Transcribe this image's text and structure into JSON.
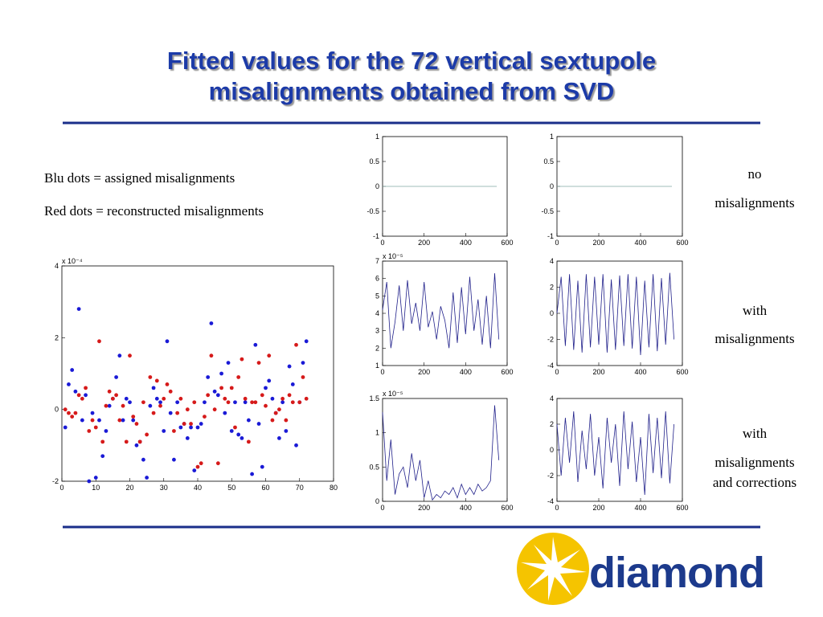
{
  "header": {
    "title": [
      "Fitted values for the 72 vertical sextupole",
      "misalignments obtained from SVD"
    ]
  },
  "legend_text": [
    "Blu dots = assigned misalignments",
    "Red dots = reconstructed misalignments"
  ],
  "side_labels": [
    [
      "no",
      "misalignments"
    ],
    [
      "with",
      "misalignments"
    ],
    [
      "with",
      "misalignments",
      "and corrections"
    ]
  ],
  "logo": {
    "text": "diamond"
  },
  "chart_data": [
    {
      "type": "scatter",
      "y_exponent": "x 10⁻⁴",
      "xlim": [
        0,
        80
      ],
      "xticks": [
        0,
        10,
        20,
        30,
        40,
        50,
        60,
        70,
        80
      ],
      "ylim": [
        -2,
        4
      ],
      "yticks": [
        -2,
        0,
        2,
        4
      ],
      "x": [
        1,
        2,
        3,
        4,
        5,
        6,
        7,
        8,
        9,
        10,
        11,
        12,
        13,
        14,
        15,
        16,
        17,
        18,
        19,
        20,
        21,
        22,
        23,
        24,
        25,
        26,
        27,
        28,
        29,
        30,
        31,
        32,
        33,
        34,
        35,
        36,
        37,
        38,
        39,
        40,
        41,
        42,
        43,
        44,
        45,
        46,
        47,
        48,
        49,
        50,
        51,
        52,
        53,
        54,
        55,
        56,
        57,
        58,
        59,
        60,
        61,
        62,
        63,
        64,
        65,
        66,
        67,
        68,
        69,
        70,
        71,
        72
      ],
      "series": [
        {
          "color": "#1a1ad6",
          "values": [
            -0.5,
            0.7,
            1.1,
            0.5,
            2.8,
            -0.3,
            0.4,
            -2.0,
            -0.1,
            -1.9,
            -0.3,
            -1.3,
            -0.6,
            0.1,
            0.3,
            0.9,
            1.5,
            -0.3,
            0.3,
            0.2,
            -0.3,
            -1.0,
            -0.9,
            -1.4,
            -1.9,
            0.1,
            0.6,
            0.3,
            0.2,
            -0.6,
            1.9,
            -0.1,
            -1.4,
            0.2,
            -0.5,
            -0.4,
            -0.8,
            -0.5,
            -1.7,
            -0.5,
            -0.4,
            0.2,
            0.9,
            2.4,
            0.5,
            0.4,
            1.0,
            -0.1,
            1.3,
            -0.6,
            0.2,
            -0.7,
            -0.8,
            0.2,
            -0.3,
            -1.8,
            1.8,
            -0.4,
            -1.6,
            0.6,
            0.8,
            0.3,
            -0.1,
            -0.8,
            0.2,
            -0.6,
            1.2,
            0.7,
            -1.0,
            0.2,
            1.3,
            1.9
          ]
        },
        {
          "color": "#d61a1a",
          "values": [
            0.0,
            -0.1,
            -0.2,
            -0.1,
            0.4,
            0.3,
            0.6,
            -0.6,
            -0.3,
            -0.5,
            1.9,
            -0.9,
            0.1,
            0.5,
            0.3,
            0.4,
            -0.3,
            0.1,
            -0.9,
            1.5,
            -0.2,
            -0.4,
            -0.9,
            0.2,
            -0.7,
            0.9,
            -0.1,
            0.8,
            0.1,
            0.3,
            0.7,
            0.5,
            -0.6,
            -0.1,
            0.3,
            -0.4,
            0.0,
            -0.4,
            0.2,
            -1.6,
            -1.5,
            -0.2,
            0.4,
            1.5,
            0.0,
            -1.5,
            0.6,
            0.3,
            0.2,
            0.6,
            -0.5,
            0.9,
            1.4,
            0.3,
            -0.9,
            0.2,
            0.2,
            1.3,
            0.4,
            0.1,
            1.5,
            -0.3,
            -0.1,
            0.0,
            0.3,
            -0.3,
            0.4,
            0.2,
            1.8,
            0.2,
            0.9,
            0.3
          ]
        }
      ]
    },
    {
      "type": "line",
      "xlim": [
        0,
        600
      ],
      "xticks": [
        0,
        200,
        400,
        600
      ],
      "ylim": [
        -1,
        1
      ],
      "yticks": [
        -1,
        -0.5,
        0,
        0.5,
        1
      ],
      "x": [
        0,
        550
      ],
      "series": [
        {
          "color": "#7fa7a0",
          "values": [
            0,
            0
          ]
        }
      ]
    },
    {
      "type": "line",
      "xlim": [
        0,
        600
      ],
      "xticks": [
        0,
        200,
        400,
        600
      ],
      "ylim": [
        -1,
        1
      ],
      "yticks": [
        -1,
        -0.5,
        0,
        0.5,
        1
      ],
      "x": [
        0,
        550
      ],
      "series": [
        {
          "color": "#7fa7a0",
          "values": [
            0,
            0
          ]
        }
      ]
    },
    {
      "type": "line",
      "y_exponent": "x 10⁻⁵",
      "xlim": [
        0,
        600
      ],
      "xticks": [
        0,
        200,
        400,
        600
      ],
      "ylim": [
        1,
        7
      ],
      "yticks": [
        1,
        2,
        3,
        4,
        5,
        6,
        7
      ],
      "x": [
        0,
        20,
        40,
        60,
        80,
        100,
        120,
        140,
        160,
        180,
        200,
        220,
        240,
        260,
        280,
        300,
        320,
        340,
        360,
        380,
        400,
        420,
        440,
        460,
        480,
        500,
        520,
        540,
        560
      ],
      "series": [
        {
          "color": "#20208a",
          "values": [
            4.2,
            5.8,
            2.0,
            3.5,
            5.6,
            3.0,
            5.9,
            3.4,
            4.6,
            3.0,
            5.8,
            3.2,
            4.1,
            2.5,
            4.4,
            3.6,
            2.0,
            5.2,
            2.3,
            5.5,
            2.8,
            6.1,
            3.0,
            4.8,
            2.2,
            5.0,
            2.0,
            6.3,
            2.5
          ]
        }
      ]
    },
    {
      "type": "line",
      "xlim": [
        0,
        600
      ],
      "xticks": [
        0,
        200,
        400,
        600
      ],
      "ylim": [
        -4,
        4
      ],
      "yticks": [
        -4,
        -2,
        0,
        2,
        4
      ],
      "x": [
        0,
        20,
        40,
        60,
        80,
        100,
        120,
        140,
        160,
        180,
        200,
        220,
        240,
        260,
        280,
        300,
        320,
        340,
        360,
        380,
        400,
        420,
        440,
        460,
        480,
        500,
        520,
        540,
        560
      ],
      "series": [
        {
          "color": "#20208a",
          "values": [
            0,
            2.8,
            -2.5,
            3,
            -2.8,
            2.5,
            -3,
            3,
            -2.6,
            2.8,
            -2.4,
            3,
            -3,
            2.6,
            -2.8,
            2.9,
            -2.5,
            3,
            -2.7,
            2.8,
            -3.2,
            2.5,
            -2.6,
            3,
            -2.9,
            2.7,
            -2.4,
            3.1,
            -2
          ]
        }
      ]
    },
    {
      "type": "line",
      "y_exponent": "x 10⁻⁵",
      "xlim": [
        0,
        600
      ],
      "xticks": [
        0,
        200,
        400,
        600
      ],
      "ylim": [
        0,
        1.5
      ],
      "yticks": [
        0,
        0.5,
        1,
        1.5
      ],
      "x": [
        0,
        20,
        40,
        60,
        80,
        100,
        120,
        140,
        160,
        180,
        200,
        220,
        240,
        260,
        280,
        300,
        320,
        340,
        360,
        380,
        400,
        420,
        440,
        460,
        480,
        500,
        520,
        540,
        560
      ],
      "series": [
        {
          "color": "#20208a",
          "values": [
            1.3,
            0.3,
            0.9,
            0.1,
            0.4,
            0.5,
            0.2,
            0.7,
            0.3,
            0.6,
            0.05,
            0.3,
            0.02,
            0.1,
            0.05,
            0.15,
            0.1,
            0.2,
            0.05,
            0.25,
            0.1,
            0.2,
            0.1,
            0.25,
            0.15,
            0.2,
            0.3,
            1.4,
            0.6
          ]
        }
      ]
    },
    {
      "type": "line",
      "xlim": [
        0,
        600
      ],
      "xticks": [
        0,
        200,
        400,
        600
      ],
      "ylim": [
        -4,
        4
      ],
      "yticks": [
        -4,
        -2,
        0,
        2,
        4
      ],
      "x": [
        0,
        20,
        40,
        60,
        80,
        100,
        120,
        140,
        160,
        180,
        200,
        220,
        240,
        260,
        280,
        300,
        320,
        340,
        360,
        380,
        400,
        420,
        440,
        460,
        480,
        500,
        520,
        540,
        560
      ],
      "series": [
        {
          "color": "#20208a",
          "values": [
            2,
            -2,
            2.5,
            -1,
            3,
            -2.5,
            1.5,
            -1.5,
            2.8,
            -2,
            1,
            -3,
            2.5,
            -1,
            2,
            -2.8,
            3,
            -1.5,
            2.2,
            -2.5,
            1,
            -3.5,
            2.8,
            -1.8,
            2.5,
            -2.2,
            3,
            -2.6,
            2
          ]
        }
      ]
    }
  ]
}
